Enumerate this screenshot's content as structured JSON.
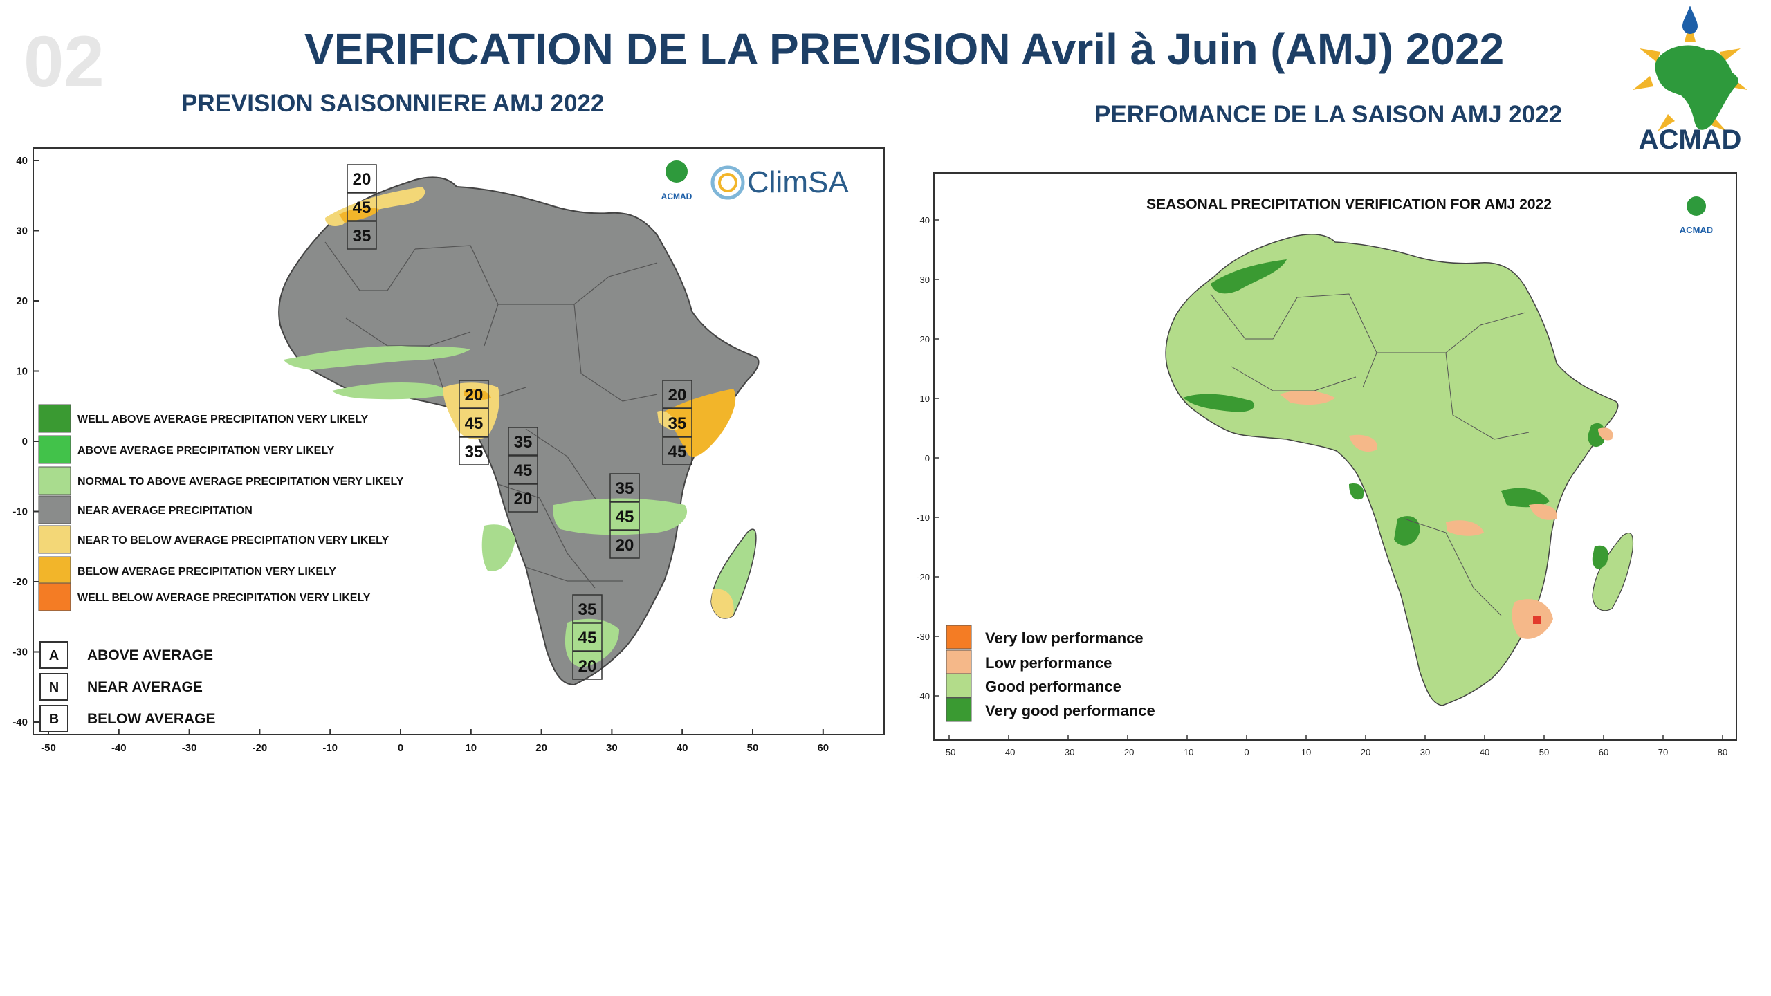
{
  "header": {
    "slide_number": "02",
    "title": "VERIFICATION DE LA PREVISION Avril à Juin (AMJ)  2022",
    "left_subtitle": "PREVISION SAISONNIERE AMJ 2022",
    "right_subtitle": "PERFOMANCE DE LA SAISON AMJ 2022",
    "logo_text": "ACMAD"
  },
  "forecast_map": {
    "logos": {
      "acmad": "ACMAD",
      "climsa": "ClimSA"
    },
    "y_ticks": [
      "40",
      "30",
      "20",
      "10",
      "0",
      "-10",
      "-20",
      "-30",
      "-40"
    ],
    "x_ticks": [
      "-50",
      "-40",
      "-30",
      "-20",
      "-10",
      "0",
      "10",
      "20",
      "30",
      "40",
      "50",
      "60"
    ],
    "legend": [
      {
        "label": "WELL ABOVE AVERAGE PRECIPITATION VERY LIKELY",
        "color": "#3a9a32"
      },
      {
        "label": "ABOVE AVERAGE PRECIPITATION VERY LIKELY",
        "color": "#42c24a"
      },
      {
        "label": "NORMAL TO ABOVE AVERAGE PRECIPITATION VERY LIKELY",
        "color": "#a9dc8e"
      },
      {
        "label": "NEAR AVERAGE PRECIPITATION",
        "color": "#8a8c8b"
      },
      {
        "label": "NEAR  TO BELOW AVERAGE PRECIPITATION VERY LIKELY",
        "color": "#f3d777"
      },
      {
        "label": "BELOW  AVERAGE PRECIPITATION VERY LIKELY",
        "color": "#f2b52a"
      },
      {
        "label": "WELL BELOW AVERAGE PRECIPITATION VERY LIKELY",
        "color": "#f47c24"
      }
    ],
    "abn_legend": [
      {
        "letter": "A",
        "label": "ABOVE AVERAGE"
      },
      {
        "letter": "N",
        "label": "NEAR AVERAGE"
      },
      {
        "letter": "B",
        "label": "BELOW AVERAGE"
      }
    ],
    "probability_boxes": [
      {
        "values": [
          "20",
          "45",
          "35"
        ]
      },
      {
        "values": [
          "20",
          "45",
          "35"
        ]
      },
      {
        "values": [
          "35",
          "45",
          "20"
        ]
      },
      {
        "values": [
          "35",
          "45",
          "20"
        ]
      },
      {
        "values": [
          "20",
          "35",
          "45"
        ]
      },
      {
        "values": [
          "35",
          "45",
          "20"
        ]
      }
    ]
  },
  "verification_map": {
    "title": "SEASONAL PRECIPITATION VERIFICATION FOR AMJ 2022",
    "logo": "ACMAD",
    "y_ticks": [
      "40",
      "30",
      "20",
      "10",
      "0",
      "-10",
      "-20",
      "-30",
      "-40"
    ],
    "x_ticks": [
      "-50",
      "-40",
      "-30",
      "-20",
      "-10",
      "0",
      "10",
      "20",
      "30",
      "40",
      "50",
      "60",
      "70",
      "80"
    ],
    "legend": [
      {
        "label": "Very low performance",
        "color": "#f47c24"
      },
      {
        "label": "Low performance",
        "color": "#f5b889"
      },
      {
        "label": "Good performance",
        "color": "#b3dc8a"
      },
      {
        "label": "Very good performance",
        "color": "#3a9a32"
      }
    ]
  }
}
